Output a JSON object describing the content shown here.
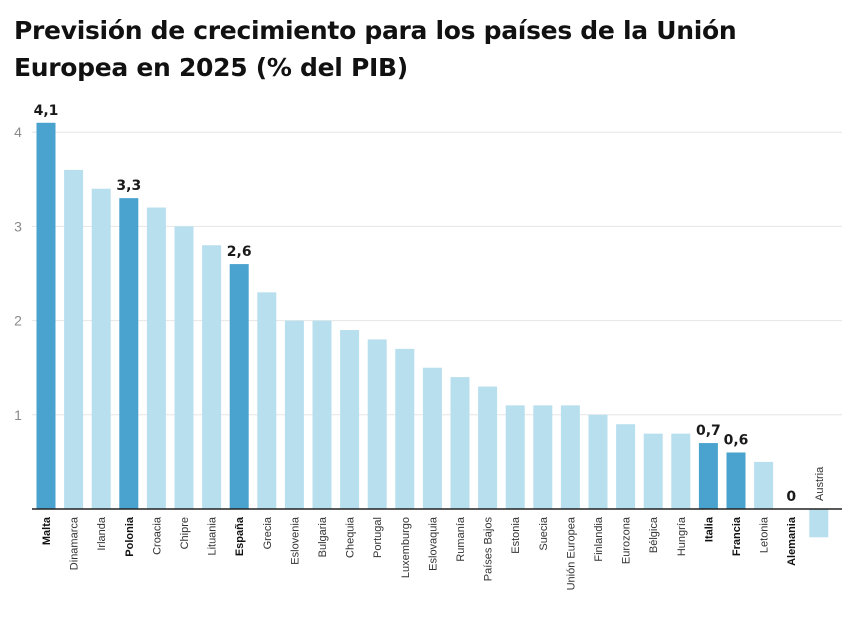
{
  "title": "Previsión de crecimiento para los países de la Unión Europea en 2025 (% del PIB)",
  "chart_data": {
    "type": "bar",
    "title": "Previsión de crecimiento para los países de la Unión Europea en 2025 (% del PIB)",
    "xlabel": "",
    "ylabel": "",
    "ylim": [
      0,
      4
    ],
    "yticks": [
      "1",
      "2",
      "3",
      "4"
    ],
    "grid": true,
    "legend": "none",
    "colors": {
      "default": "#b8dfee",
      "highlight": "#4aa3cf",
      "axis": "#222222",
      "grid": "#e6e6e6"
    },
    "categories": [
      "Malta",
      "Dinamarca",
      "Irlanda",
      "Polonia",
      "Croacia",
      "Chipre",
      "Lituania",
      "España",
      "Grecia",
      "Eslovenia",
      "Bulgaria",
      "Chequia",
      "Portugal",
      "Luxemburgo",
      "Eslovaquia",
      "Rumanía",
      "Países Bajos",
      "Estonia",
      "Suecia",
      "Unión Europea",
      "Finlandia",
      "Eurozona",
      "Bélgica",
      "Hungría",
      "Italia",
      "Francia",
      "Letonia",
      "Alemania",
      "Austria"
    ],
    "values": [
      4.1,
      3.6,
      3.4,
      3.3,
      3.2,
      3.0,
      2.8,
      2.6,
      2.3,
      2.0,
      2.0,
      1.9,
      1.8,
      1.7,
      1.5,
      1.4,
      1.3,
      1.1,
      1.1,
      1.1,
      1.0,
      0.9,
      0.8,
      0.8,
      0.7,
      0.6,
      0.5,
      0,
      -0.3
    ],
    "highlighted": [
      "Malta",
      "Polonia",
      "España",
      "Italia",
      "Francia",
      "Alemania"
    ],
    "data_labels": [
      {
        "category": "Malta",
        "text": "4,1"
      },
      {
        "category": "Polonia",
        "text": "3,3"
      },
      {
        "category": "España",
        "text": "2,6"
      },
      {
        "category": "Italia",
        "text": "0,7"
      },
      {
        "category": "Francia",
        "text": "0,6"
      },
      {
        "category": "Alemania",
        "text": "0"
      }
    ]
  }
}
